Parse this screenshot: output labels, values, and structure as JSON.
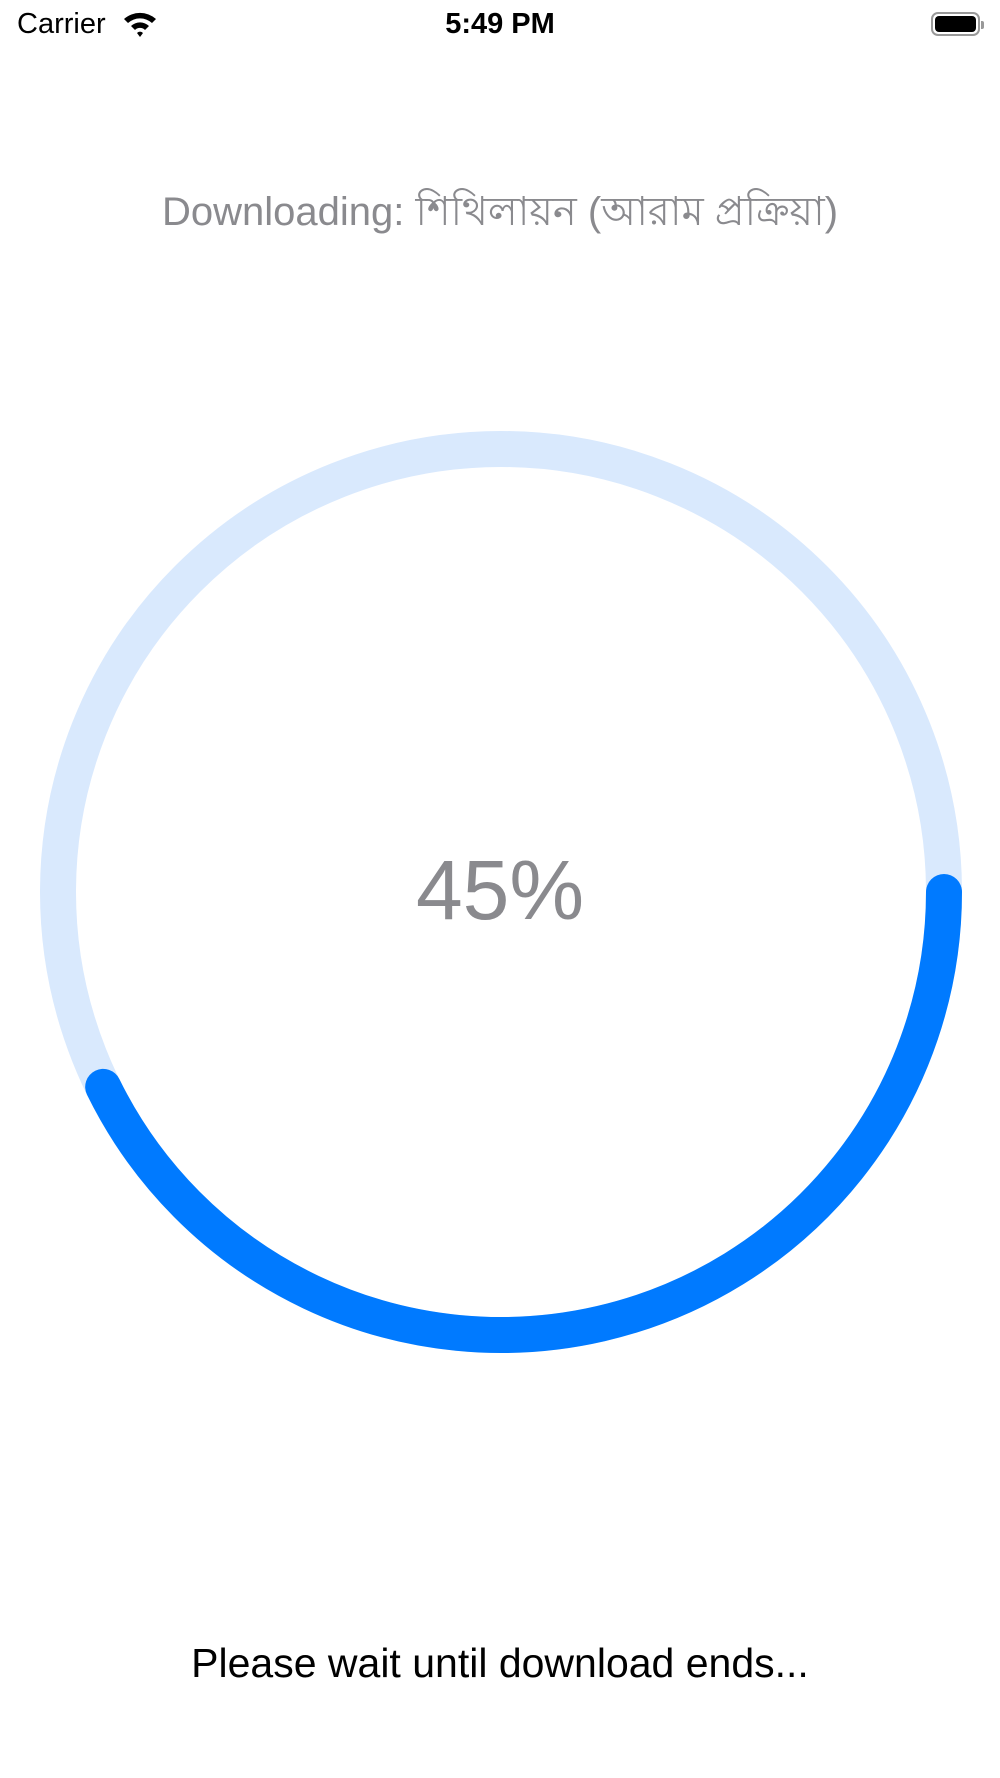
{
  "status_bar": {
    "carrier": "Carrier",
    "time": "5:49 PM",
    "battery_icon": "battery-full-icon",
    "wifi_icon": "wifi-icon"
  },
  "title": "Downloading: শিথিলায়ন (আরাম প্রক্রিয়া)",
  "progress": {
    "value": 0.45,
    "label": "45%",
    "track_color": "#D9E9FD",
    "fill_color": "#007AFF"
  },
  "message": "Please wait until download ends..."
}
